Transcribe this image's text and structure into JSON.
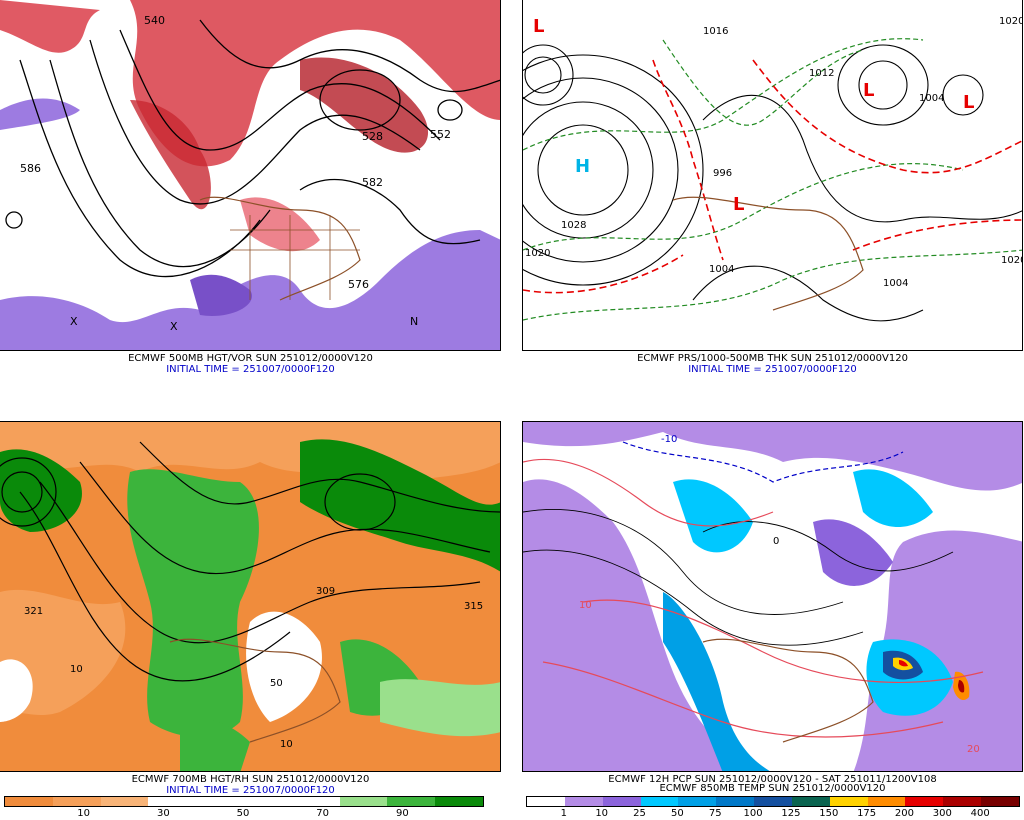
{
  "panels": {
    "p1": {
      "caption": "ECMWF 500MB HGT/VOR SUN 251012/0000V120",
      "initial_time": "INITIAL TIME = 251007/0000F120",
      "labels": [
        "540",
        "586",
        "528",
        "552",
        "582",
        "576",
        "X",
        "X",
        "N"
      ]
    },
    "p2": {
      "caption": "ECMWF PRS/1000-500MB THK SUN 251012/0000V120",
      "initial_time": "INITIAL TIME = 251007/0000F120",
      "labels": [
        "H",
        "L",
        "L",
        "L",
        "L",
        "1028",
        "1020",
        "1020",
        "1004",
        "1004",
        "1016",
        "996",
        "1020",
        "1004",
        "1012"
      ]
    },
    "p3": {
      "caption": "ECMWF 700MB HGT/RH SUN 251012/0000V120",
      "initial_time": "INITIAL TIME = 251007/0000F120",
      "labels": [
        "321",
        "315",
        "309",
        "10",
        "50",
        "10"
      ],
      "colorbar": {
        "colors": [
          "#f08c3c",
          "#f5a05a",
          "#f8b478",
          "#ffffff",
          "#ffffff",
          "#ffffff",
          "#ffffff",
          "#9ae08c",
          "#3cb43c",
          "#0a8a0a"
        ],
        "ticks": [
          "10",
          "30",
          "50",
          "70",
          "90"
        ]
      }
    },
    "p4": {
      "caption": "ECMWF 12H PCP SUN 251012/0000V120 - SAT 251011/1200V108",
      "caption2": "ECMWF 850MB TEMP SUN 251012/0000V120",
      "labels": [
        "-10",
        "10",
        "20",
        "0"
      ],
      "colorbar": {
        "colors": [
          "#ffffff",
          "#b48ce6",
          "#8c64dc",
          "#00c8ff",
          "#00a0e6",
          "#0078c8",
          "#1450a0",
          "#0a6450",
          "#ffd200",
          "#ff8c00",
          "#e60000",
          "#aa0000",
          "#780000"
        ],
        "ticks": [
          "1",
          "10",
          "25",
          "50",
          "75",
          "100",
          "125",
          "150",
          "175",
          "200",
          "300",
          "400"
        ]
      }
    }
  }
}
